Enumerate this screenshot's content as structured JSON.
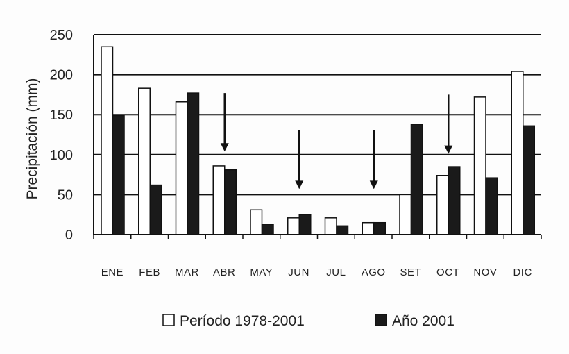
{
  "chart_data": {
    "type": "bar",
    "title": "",
    "xlabel": "",
    "ylabel": "Precipitación (mm)",
    "ylim": [
      0,
      250
    ],
    "yticks": [
      0,
      50,
      100,
      150,
      200,
      250
    ],
    "grid": true,
    "legend_position": "bottom",
    "categories": [
      "ENE",
      "FEB",
      "MAR",
      "ABR",
      "MAY",
      "JUN",
      "JUL",
      "AGO",
      "SET",
      "OCT",
      "NOV",
      "DIC"
    ],
    "series": [
      {
        "name": "Período 1978-2001",
        "color": "#ffffff",
        "values": [
          235,
          183,
          166,
          86,
          31,
          21,
          21,
          15,
          50,
          74,
          172,
          204
        ]
      },
      {
        "name": "Año 2001",
        "color": "#1a1a1a",
        "values": [
          149,
          62,
          177,
          81,
          13,
          25,
          11,
          15,
          138,
          85,
          71,
          136
        ]
      }
    ],
    "arrows": [
      {
        "category": "ABR",
        "from": 177,
        "to": 104
      },
      {
        "category": "JUN",
        "from": 131,
        "to": 57
      },
      {
        "category": "AGO",
        "from": 131,
        "to": 57
      },
      {
        "category": "OCT",
        "from": 175,
        "to": 101
      }
    ]
  }
}
